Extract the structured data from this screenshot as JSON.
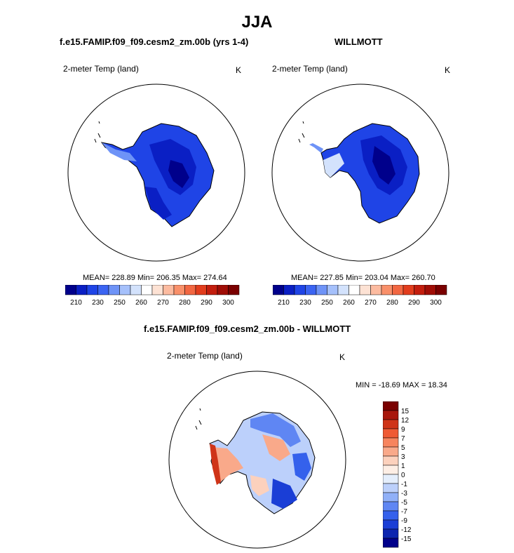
{
  "main_title": "JJA",
  "panels": [
    {
      "title": "f.e15.FAMIP.f09_f09.cesm2_zm.00b (yrs 1-4)",
      "variable_label": "2-meter Temp (land)",
      "units": "K",
      "stats": "MEAN= 228.89  Min= 206.35  Max= 274.64",
      "colorbar_ticks": [
        "210",
        "230",
        "250",
        "260",
        "270",
        "280",
        "290",
        "300"
      ]
    },
    {
      "title": "WILLMOTT",
      "variable_label": "2-meter Temp (land)",
      "units": "K",
      "stats": "MEAN= 227.85  Min= 203.04  Max= 260.70",
      "colorbar_ticks": [
        "210",
        "230",
        "250",
        "260",
        "270",
        "280",
        "290",
        "300"
      ]
    },
    {
      "title": "f.e15.FAMIP.f09_f09.cesm2_zm.00b - WILLMOTT",
      "variable_label": "2-meter Temp (land)",
      "units": "K",
      "stats": "MIN = -18.69 MAX =  18.34",
      "colorbar_ticks": [
        "15",
        "12",
        "9",
        "7",
        "5",
        "3",
        "1",
        "0",
        "-1",
        "-3",
        "-5",
        "-7",
        "-9",
        "-12",
        "-15"
      ]
    }
  ],
  "colors": {
    "abs_scale": [
      "#00008b",
      "#0a1fc4",
      "#1f44e6",
      "#3b64f2",
      "#6e93f7",
      "#a5c0fb",
      "#d3e2fc",
      "#ffffff",
      "#fde2d4",
      "#fcbba0",
      "#f9906a",
      "#f26742",
      "#e23d1d",
      "#c31e0e",
      "#a00d06",
      "#7a0000"
    ],
    "diff_scale": [
      "#7a0000",
      "#a8170c",
      "#cf3418",
      "#ef5a34",
      "#f7845e",
      "#f9a98a",
      "#fcd1bd",
      "#fdeee5",
      "#e4eefc",
      "#bcd0fb",
      "#90b0f8",
      "#5f86f3",
      "#3561ec",
      "#1a3ed6",
      "#0c25b0",
      "#00008b"
    ]
  }
}
